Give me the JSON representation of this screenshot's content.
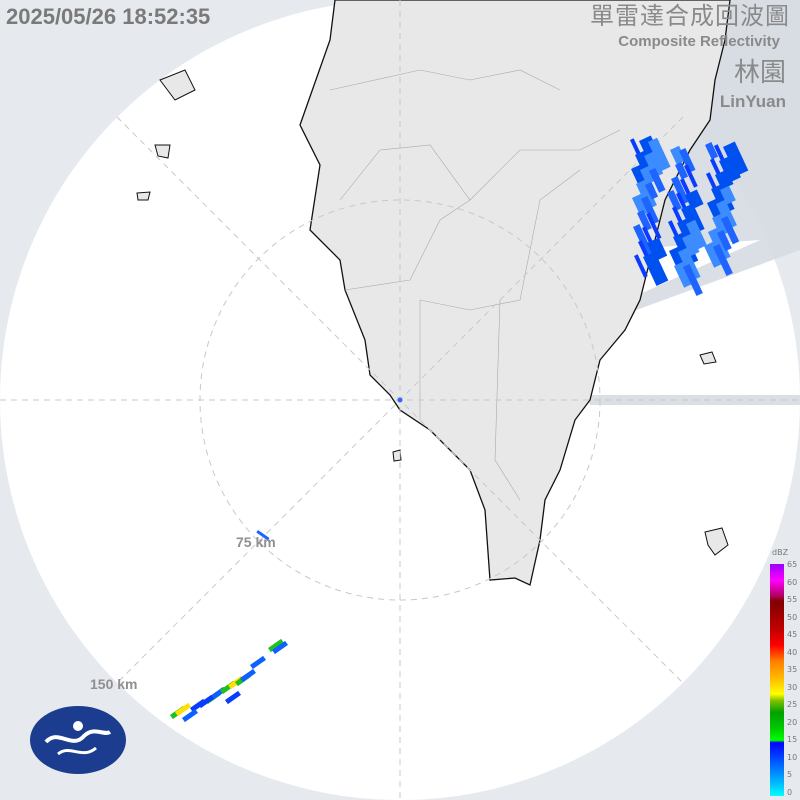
{
  "timestamp": "2025/05/26 18:52:35",
  "title_zh": "單雷達合成回波圖",
  "title_en": "Composite Reflectivity",
  "site_zh": "林園",
  "site_en": "LinYuan",
  "range_rings": [
    "75 km",
    "150 km"
  ],
  "legend": {
    "unit": "dBZ",
    "ticks": [
      "65",
      "60",
      "55",
      "50",
      "45",
      "40",
      "35",
      "30",
      "25",
      "20",
      "15",
      "10",
      "5",
      "0"
    ]
  },
  "colors": {
    "background": "#e6e9ee",
    "coverage": "#ffffff",
    "land": "#e8e8e8",
    "blocked_beam": "#d3d8df",
    "echo_blue": "#1060ff",
    "echo_green": "#20c020"
  },
  "logo": "Central Weather Administration logo"
}
